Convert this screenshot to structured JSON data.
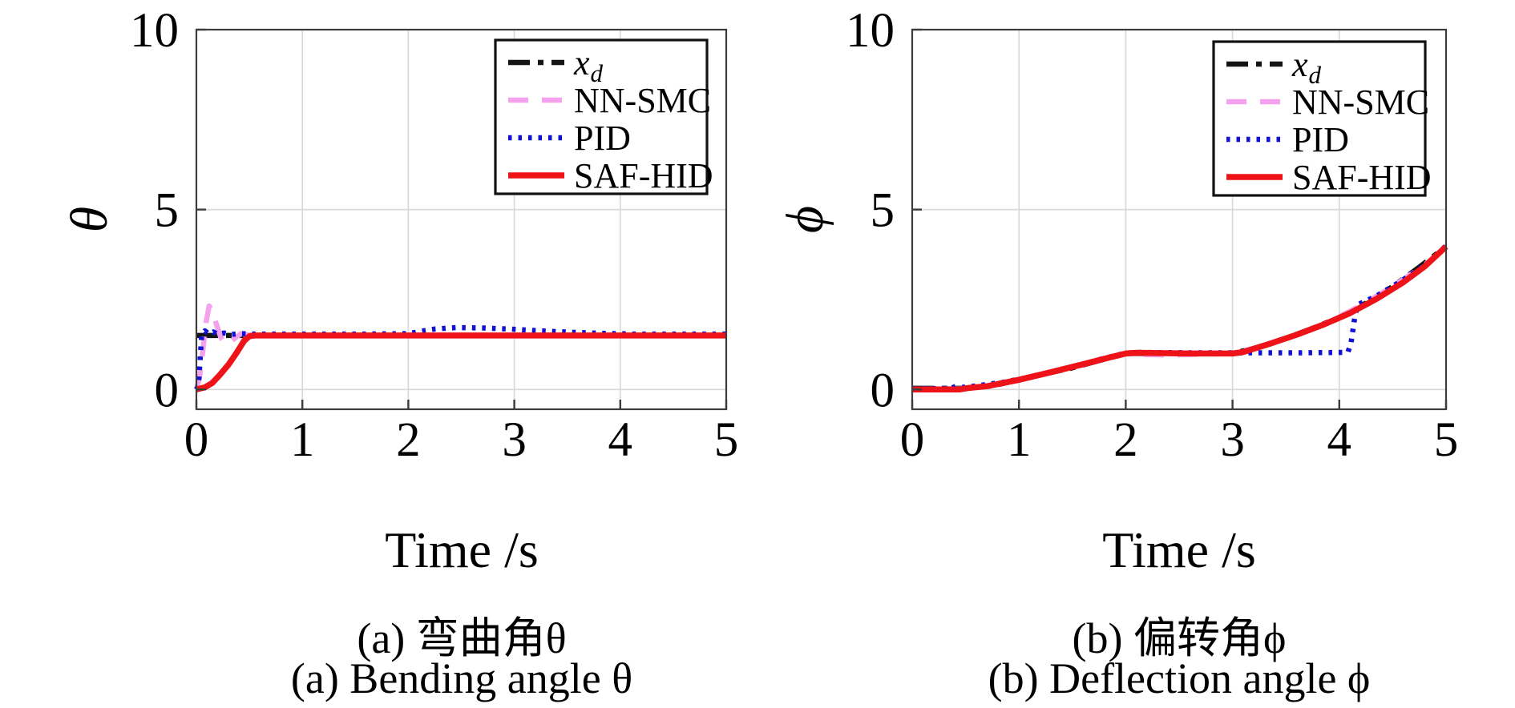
{
  "colors": {
    "background": "#ffffff",
    "frame": "#3c3c3c",
    "grid": "#d8d8d8",
    "xd": "#141414",
    "nn_smc": "#f5a2ee",
    "pid": "#1212d6",
    "saf_hid": "#ee1318"
  },
  "chart_data": [
    {
      "id": "bending",
      "type": "line",
      "ylabel": "θ",
      "xlabel": "Time /s",
      "caption_cn": "(a) 弯曲角θ",
      "caption_en": "(a) Bending angle θ",
      "xlim": [
        0,
        5
      ],
      "ylim": [
        -0.55,
        10
      ],
      "xticks": [
        0,
        1,
        2,
        3,
        4,
        5
      ],
      "yticks": [
        0,
        5,
        10
      ],
      "grid": true,
      "legend_position": "top-right",
      "series": [
        {
          "name": "x_d",
          "color": "#141414",
          "style": "dashdot",
          "width": 6.5,
          "x": [
            0,
            5
          ],
          "y": [
            1.5,
            1.5
          ]
        },
        {
          "name": "NN-SMC",
          "color": "#f5a2ee",
          "style": "dashed",
          "width": 6.5,
          "x": [
            0,
            0.03,
            0.06,
            0.09,
            0.12,
            0.15,
            0.19,
            0.23,
            0.27,
            0.31,
            0.36,
            0.42,
            0.5,
            0.6,
            5
          ],
          "y": [
            0,
            0.35,
            1.05,
            1.85,
            2.32,
            2.2,
            1.8,
            1.45,
            1.27,
            1.28,
            1.42,
            1.55,
            1.51,
            1.5,
            1.5
          ]
        },
        {
          "name": "PID",
          "color": "#1212d6",
          "style": "dotted",
          "width": 6.5,
          "x": [
            0,
            0.02,
            0.05,
            0.08,
            0.12,
            0.16,
            0.2,
            0.26,
            0.33,
            0.42,
            0.55,
            0.8,
            1.2,
            1.6,
            2.0,
            2.1,
            2.25,
            2.45,
            2.7,
            2.95,
            3.25,
            3.55,
            3.85,
            4.1,
            4.35,
            5
          ],
          "y": [
            0,
            0.1,
            1.52,
            1.63,
            1.54,
            1.6,
            1.53,
            1.57,
            1.53,
            1.55,
            1.54,
            1.54,
            1.54,
            1.54,
            1.55,
            1.61,
            1.68,
            1.72,
            1.71,
            1.68,
            1.63,
            1.59,
            1.56,
            1.54,
            1.54,
            1.54
          ]
        },
        {
          "name": "SAF-HID",
          "color": "#ee1318",
          "style": "solid",
          "width": 7.5,
          "x": [
            0,
            0.08,
            0.15,
            0.22,
            0.3,
            0.38,
            0.45,
            0.5,
            0.55,
            5
          ],
          "y": [
            0,
            0.06,
            0.18,
            0.4,
            0.68,
            1.02,
            1.35,
            1.48,
            1.5,
            1.5
          ]
        }
      ]
    },
    {
      "id": "deflection",
      "type": "line",
      "ylabel": "ϕ",
      "xlabel": "Time /s",
      "caption_cn": "(b) 偏转角ϕ",
      "caption_en": "(b) Deflection angle ϕ",
      "xlim": [
        0,
        5
      ],
      "ylim": [
        -0.55,
        10
      ],
      "xticks": [
        0,
        1,
        2,
        3,
        4,
        5
      ],
      "yticks": [
        0,
        5,
        10
      ],
      "grid": true,
      "legend_position": "top-right",
      "series": [
        {
          "name": "x_d",
          "color": "#141414",
          "style": "dashdot",
          "width": 6.5,
          "x": [
            0,
            0.5,
            0.75,
            1,
            1.25,
            1.5,
            1.75,
            2,
            3,
            3.25,
            3.5,
            3.75,
            4,
            4.25,
            4.5,
            4.75,
            5
          ],
          "y": [
            0.03,
            0.03,
            0.1,
            0.27,
            0.44,
            0.6,
            0.8,
            1.0,
            1.0,
            1.18,
            1.42,
            1.7,
            2.0,
            2.4,
            2.86,
            3.4,
            3.97
          ]
        },
        {
          "name": "NN-SMC",
          "color": "#f5a2ee",
          "style": "dashed",
          "width": 6.5,
          "x": [
            0,
            0.45,
            0.7,
            1,
            1.3,
            1.6,
            1.85,
            2,
            2.15,
            2.4,
            2.7,
            3,
            3.3,
            3.6,
            3.9,
            4.2,
            4.5,
            4.8,
            5
          ],
          "y": [
            0.01,
            0.02,
            0.08,
            0.26,
            0.47,
            0.7,
            0.89,
            1.0,
            0.97,
            0.96,
            0.98,
            1.0,
            1.22,
            1.52,
            1.87,
            2.33,
            2.86,
            3.46,
            3.96
          ]
        },
        {
          "name": "PID",
          "color": "#1212d6",
          "style": "dotted",
          "width": 6.5,
          "x": [
            0,
            0.36,
            0.42,
            0.48,
            0.6,
            0.85,
            1.15,
            1.45,
            1.75,
            1.98,
            2.1,
            2.6,
            3.1,
            3.6,
            4.08,
            4.11,
            4.14,
            4.17,
            4.35,
            4.6,
            4.85,
            5
          ],
          "y": [
            0.02,
            0.03,
            0.1,
            0.06,
            0.1,
            0.2,
            0.37,
            0.58,
            0.83,
            1.0,
            1.03,
            1.02,
            1.02,
            1.02,
            1.03,
            1.3,
            1.9,
            2.35,
            2.6,
            3.05,
            3.55,
            4.0
          ]
        },
        {
          "name": "SAF-HID",
          "color": "#ee1318",
          "style": "solid",
          "width": 7.5,
          "x": [
            0,
            0.44,
            0.52,
            0.7,
            1,
            1.3,
            1.6,
            1.85,
            2,
            2.1,
            2.6,
            3,
            3.1,
            3.35,
            3.6,
            3.85,
            4.1,
            4.35,
            4.6,
            4.8,
            5
          ],
          "y": [
            0,
            0,
            0.04,
            0.09,
            0.27,
            0.48,
            0.7,
            0.89,
            1.0,
            1.02,
            1.0,
            1.0,
            1.04,
            1.27,
            1.52,
            1.8,
            2.12,
            2.52,
            2.98,
            3.42,
            3.97
          ]
        }
      ]
    }
  ]
}
